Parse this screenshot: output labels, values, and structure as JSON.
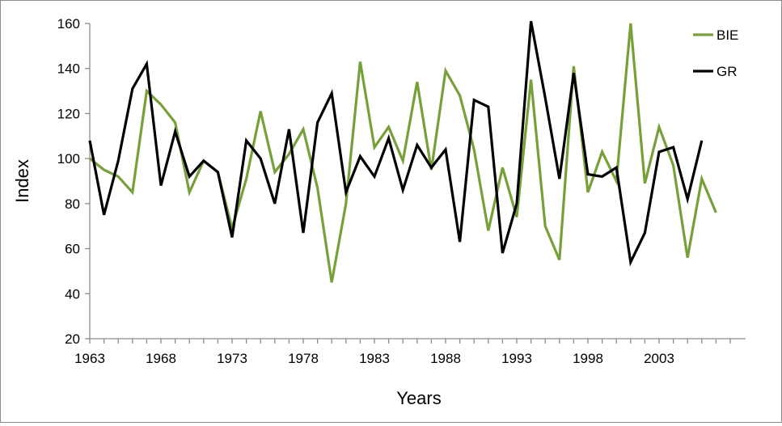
{
  "chart_data": {
    "type": "line",
    "title": "",
    "xlabel": "Years",
    "ylabel": "Index",
    "ylim": [
      20,
      160
    ],
    "xlim": [
      1963,
      2008
    ],
    "yticks": [
      20,
      40,
      60,
      80,
      100,
      120,
      140,
      160
    ],
    "xticks": [
      1963,
      1968,
      1973,
      1978,
      1983,
      1988,
      1993,
      1998,
      2003
    ],
    "grid": false,
    "legend": "top-right",
    "x": [
      1963,
      1964,
      1965,
      1966,
      1967,
      1968,
      1969,
      1970,
      1971,
      1972,
      1973,
      1974,
      1975,
      1976,
      1977,
      1978,
      1979,
      1980,
      1981,
      1982,
      1983,
      1984,
      1985,
      1986,
      1987,
      1988,
      1989,
      1990,
      1991,
      1992,
      1993,
      1994,
      1995,
      1996,
      1997,
      1998,
      1999,
      2000,
      2001,
      2002,
      2003,
      2004,
      2005,
      2006,
      2007
    ],
    "series": [
      {
        "name": "BIE",
        "color": "#77a03a",
        "values": [
          100,
          95,
          92,
          85,
          130,
          124,
          116,
          85,
          99,
          94,
          69,
          91,
          121,
          94,
          102,
          113,
          87,
          45,
          80,
          143,
          105,
          114,
          99,
          134,
          95,
          139,
          128,
          104,
          68,
          96,
          74,
          135,
          70,
          55,
          141,
          85,
          103,
          90,
          160,
          89,
          114,
          97,
          56,
          91,
          76
        ]
      },
      {
        "name": "GR",
        "color": "#000000",
        "values": [
          108,
          75,
          99,
          131,
          142,
          88,
          112,
          92,
          99,
          94,
          65,
          108,
          100,
          80,
          113,
          67,
          116,
          129,
          85,
          101,
          92,
          109,
          86,
          106,
          96,
          104,
          63,
          126,
          123,
          58,
          80,
          161,
          127,
          91,
          138,
          93,
          92,
          96,
          54,
          67,
          103,
          105,
          82,
          108,
          null
        ]
      }
    ]
  }
}
